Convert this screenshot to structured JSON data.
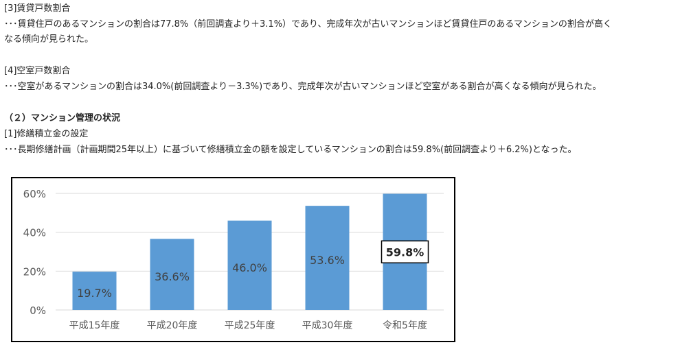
{
  "section3": {
    "heading": "[3]賃貸戸数割合",
    "body_line1": "･･･賃貸住戸のあるマンションの割合は77.8%（前回調査より＋3.1%）であり、完成年次が古いマンションほど賃貸住戸のあるマンションの割合が高く",
    "body_line2": "なる傾向が見られた。"
  },
  "section4": {
    "heading": "[4]空室戸数割合",
    "body": "･･･空室があるマンションの割合は34.0%(前回調査より－3.3%)であり、完成年次が古いマンションほど空室がある割合が高くなる傾向が見られた。"
  },
  "part2": {
    "heading": "（２）マンション管理の状況",
    "sub_heading": "[1]修繕積立金の設定",
    "body": "･･･長期修繕計画（計画期間25年以上）に基づいて修繕積立金の額を設定しているマンションの割合は59.8%(前回調査より＋6.2%)となった。"
  },
  "colors": {
    "bar": "#5B9BD5",
    "grid": "#D9D9D9",
    "axis_text": "#595959",
    "data_label": "#404040"
  },
  "chart_data": {
    "type": "bar",
    "categories": [
      "平成15年度",
      "平成20年度",
      "平成25年度",
      "平成30年度",
      "令和5年度"
    ],
    "values": [
      19.7,
      36.6,
      46.0,
      53.6,
      59.8
    ],
    "data_labels": [
      "19.7%",
      "36.6%",
      "46.0%",
      "53.6%",
      "59.8%"
    ],
    "highlighted_index": 4,
    "y_ticks": [
      0,
      20,
      40,
      60
    ],
    "y_tick_labels": [
      "0%",
      "20%",
      "40%",
      "60%"
    ],
    "ylim": [
      0,
      60
    ],
    "grid": true,
    "legend": false
  }
}
